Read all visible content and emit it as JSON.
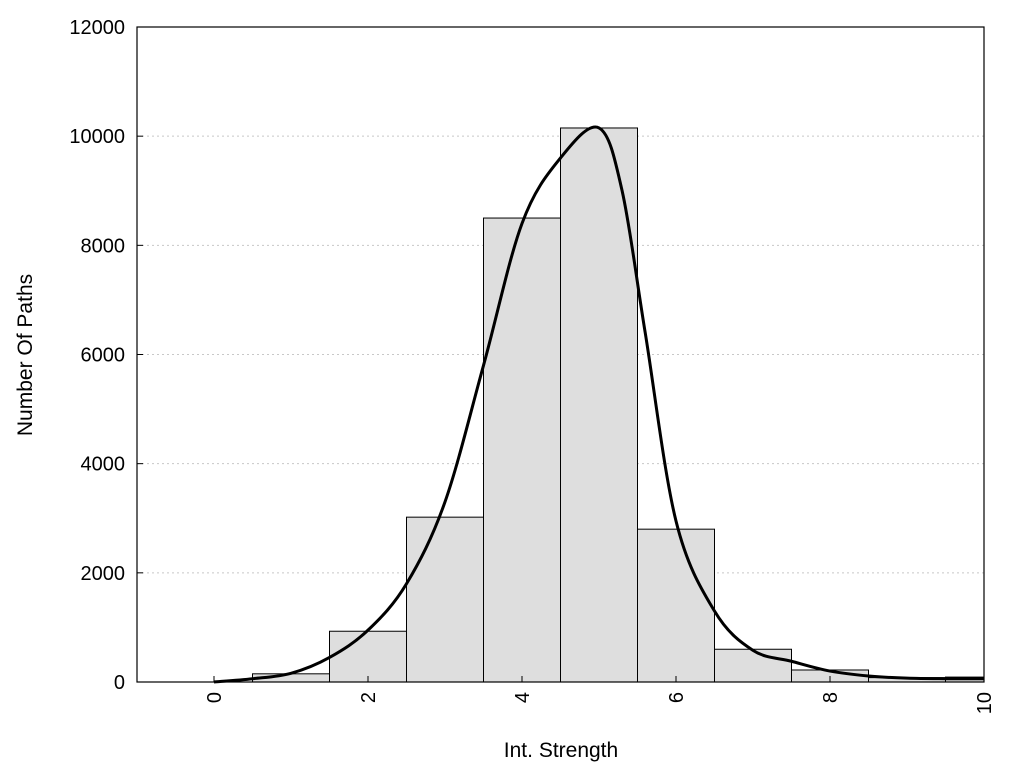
{
  "chart_data": {
    "type": "bar",
    "title": "",
    "xlabel": "Int. Strength",
    "ylabel": "Number Of Paths",
    "xlim": [
      -1,
      10
    ],
    "ylim": [
      0,
      12000
    ],
    "x_ticks": [
      0,
      2,
      4,
      6,
      8,
      10
    ],
    "y_ticks": [
      0,
      2000,
      4000,
      6000,
      8000,
      10000,
      12000
    ],
    "grid": "horizontal dotted",
    "bar_color": "#dedede",
    "bars": {
      "x": [
        0,
        1,
        2,
        3,
        4,
        5,
        6,
        7,
        8,
        9,
        10
      ],
      "values": [
        0,
        150,
        930,
        3020,
        8500,
        10150,
        2800,
        600,
        220,
        80,
        90
      ]
    },
    "curve": {
      "x": [
        0,
        0.5,
        1,
        1.5,
        2,
        2.5,
        3,
        3.5,
        4,
        4.5,
        5,
        5.3,
        5.6,
        6,
        6.5,
        7,
        7.5,
        8,
        8.5,
        9,
        9.5,
        10
      ],
      "y": [
        0,
        60,
        160,
        450,
        950,
        1800,
        3300,
        5800,
        8400,
        9600,
        10150,
        9000,
        6400,
        2950,
        1300,
        580,
        380,
        200,
        110,
        70,
        60,
        60
      ]
    }
  }
}
